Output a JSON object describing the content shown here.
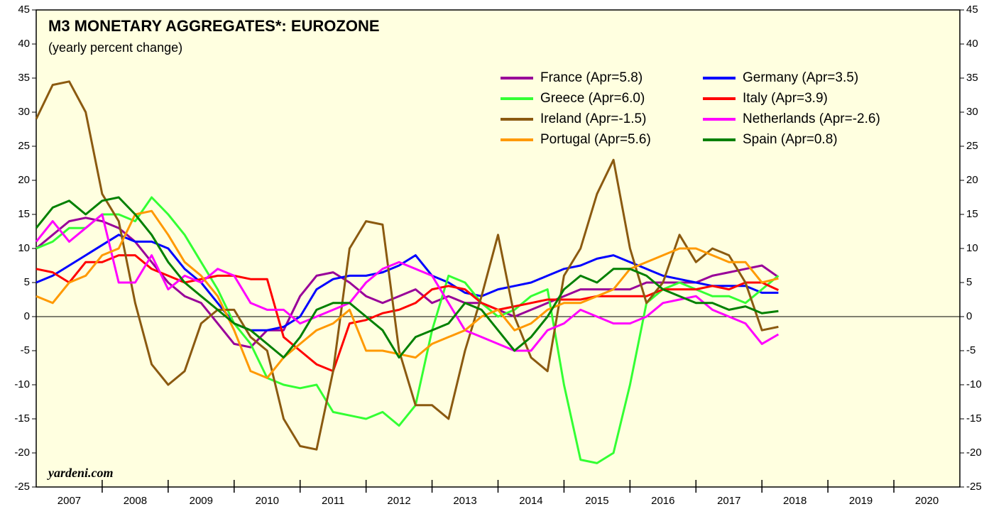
{
  "chart_data": {
    "type": "line",
    "title": "M3 MONETARY AGGREGATES*: EUROZONE",
    "subtitle": "(yearly percent change)",
    "source": "yardeni.com",
    "x": [
      2007,
      2007.25,
      2007.5,
      2007.75,
      2008,
      2008.25,
      2008.5,
      2008.75,
      2009,
      2009.25,
      2009.5,
      2009.75,
      2010,
      2010.25,
      2010.5,
      2010.75,
      2011,
      2011.25,
      2011.5,
      2011.75,
      2012,
      2012.25,
      2012.5,
      2012.75,
      2013,
      2013.25,
      2013.5,
      2013.75,
      2014,
      2014.25,
      2014.5,
      2014.75,
      2015,
      2015.25,
      2015.5,
      2015.75,
      2016,
      2016.25,
      2016.5,
      2016.75,
      2017,
      2017.25,
      2017.5,
      2017.75,
      2018,
      2018.25
    ],
    "xlim": [
      2007,
      2021
    ],
    "xticks": [
      {
        "value": 2007.5,
        "label": "2007"
      },
      {
        "value": 2008.5,
        "label": "2008"
      },
      {
        "value": 2009.5,
        "label": "2009"
      },
      {
        "value": 2010.5,
        "label": "2010"
      },
      {
        "value": 2011.5,
        "label": "2011"
      },
      {
        "value": 2012.5,
        "label": "2012"
      },
      {
        "value": 2013.5,
        "label": "2013"
      },
      {
        "value": 2014.5,
        "label": "2014"
      },
      {
        "value": 2015.5,
        "label": "2015"
      },
      {
        "value": 2016.5,
        "label": "2016"
      },
      {
        "value": 2017.5,
        "label": "2017"
      },
      {
        "value": 2018.5,
        "label": "2018"
      },
      {
        "value": 2019.5,
        "label": "2019"
      },
      {
        "value": 2020.5,
        "label": "2020"
      }
    ],
    "ylim": [
      -25,
      45
    ],
    "yticks": [
      -25,
      -20,
      -15,
      -10,
      -5,
      0,
      5,
      10,
      15,
      20,
      25,
      30,
      35,
      40,
      45
    ],
    "series": [
      {
        "name": "France (Apr=5.8)",
        "color": "#990099",
        "values": [
          10,
          12,
          14,
          14.5,
          14,
          13,
          11,
          8,
          5,
          3,
          2,
          -1,
          -4,
          -4.5,
          -2,
          -2,
          3,
          6,
          6.5,
          5,
          3,
          2,
          3,
          4,
          2,
          3,
          2,
          2,
          1,
          0,
          1,
          2,
          3,
          4,
          4,
          4,
          4,
          5,
          5,
          5,
          5,
          6,
          6.5,
          7,
          7.5,
          5.8
        ]
      },
      {
        "name": "Germany (Apr=3.5)",
        "color": "#0000ff",
        "values": [
          5,
          6,
          7.5,
          9,
          10.5,
          12,
          11,
          11,
          10,
          7,
          5,
          2,
          -1,
          -2,
          -2,
          -1.5,
          0,
          4,
          5.5,
          6,
          6,
          6.5,
          7.5,
          9,
          6,
          5,
          3.5,
          3,
          4,
          4.5,
          5,
          6,
          7,
          7.5,
          8.5,
          9,
          8,
          7,
          6,
          5.5,
          5,
          4.5,
          4.5,
          4.5,
          3.5,
          3.5
        ]
      },
      {
        "name": "Greece (Apr=6.0)",
        "color": "#33ff33",
        "values": [
          10,
          11,
          13,
          13,
          15,
          15,
          14,
          17.5,
          15,
          12,
          8,
          4,
          -1,
          -4,
          -9,
          -10,
          -10.5,
          -10,
          -14,
          -14.5,
          -15,
          -14,
          -16,
          -13,
          -2,
          6,
          5,
          2,
          0,
          1,
          3,
          4,
          -10,
          -21,
          -21.5,
          -20,
          -10,
          2,
          4,
          5,
          4,
          3,
          3,
          2,
          4,
          6.0
        ]
      },
      {
        "name": "Italy (Apr=3.9)",
        "color": "#ff0000",
        "values": [
          7,
          6.5,
          5,
          8,
          8,
          9,
          9,
          7,
          6,
          5,
          5.5,
          6,
          6,
          5.5,
          5.5,
          -3,
          -5,
          -7,
          -8,
          -1,
          -0.5,
          0.5,
          1,
          2,
          4,
          4.5,
          4,
          2,
          1,
          1.5,
          2,
          2.5,
          2.5,
          2.5,
          3,
          3,
          3,
          3,
          4,
          4,
          4,
          4.5,
          4,
          5,
          5,
          3.9
        ]
      },
      {
        "name": "Ireland (Apr=-1.5)",
        "color": "#8b5a10",
        "values": [
          29,
          34,
          34.5,
          30,
          18,
          14,
          2,
          -7,
          -10,
          -8,
          -1,
          1,
          1,
          -3,
          -5,
          -15,
          -19,
          -19.5,
          -8,
          10,
          14,
          13.5,
          -5,
          -13,
          -13,
          -15,
          -5,
          3,
          12,
          0,
          -6,
          -8,
          6,
          10,
          18,
          23,
          10,
          2,
          5,
          12,
          8,
          10,
          9,
          5,
          -2,
          -1.5
        ]
      },
      {
        "name": "Netherlands (Apr=-2.6)",
        "color": "#ff00ff",
        "values": [
          11,
          14,
          11,
          13,
          15,
          5,
          5,
          9,
          4,
          6,
          5,
          7,
          6,
          2,
          1,
          1,
          -1,
          0,
          1,
          2,
          5,
          7,
          8,
          7,
          6,
          2,
          -2,
          -3,
          -4,
          -5,
          -5,
          -2,
          -1,
          1,
          0,
          -1,
          -1,
          0,
          2,
          2.5,
          3,
          1,
          0,
          -1,
          -4,
          -2.6
        ]
      },
      {
        "name": "Portugal (Apr=5.6)",
        "color": "#ff9900",
        "values": [
          3,
          2,
          5,
          6,
          9,
          10,
          15,
          15.5,
          12,
          8,
          6,
          3,
          -2,
          -8,
          -9,
          -6,
          -4,
          -2,
          -1,
          1,
          -5,
          -5,
          -5.5,
          -6,
          -4,
          -3,
          -2,
          0,
          1,
          -2,
          -1,
          1,
          2,
          2,
          3,
          4,
          7,
          8,
          9,
          10,
          10,
          9,
          8,
          8,
          5,
          5.6
        ]
      },
      {
        "name": "Spain (Apr=0.8)",
        "color": "#008000",
        "values": [
          13,
          16,
          17,
          15,
          17,
          17.5,
          15,
          12,
          8,
          5,
          3,
          1,
          -1,
          -2,
          -4,
          -6,
          -3,
          1,
          2,
          2,
          0,
          -2,
          -6,
          -3,
          -2,
          -1,
          2,
          1,
          -2,
          -5,
          -3,
          0,
          4,
          6,
          5,
          7,
          7,
          6,
          4,
          3,
          2,
          2,
          1,
          1.5,
          0.5,
          0.8
        ]
      }
    ]
  }
}
